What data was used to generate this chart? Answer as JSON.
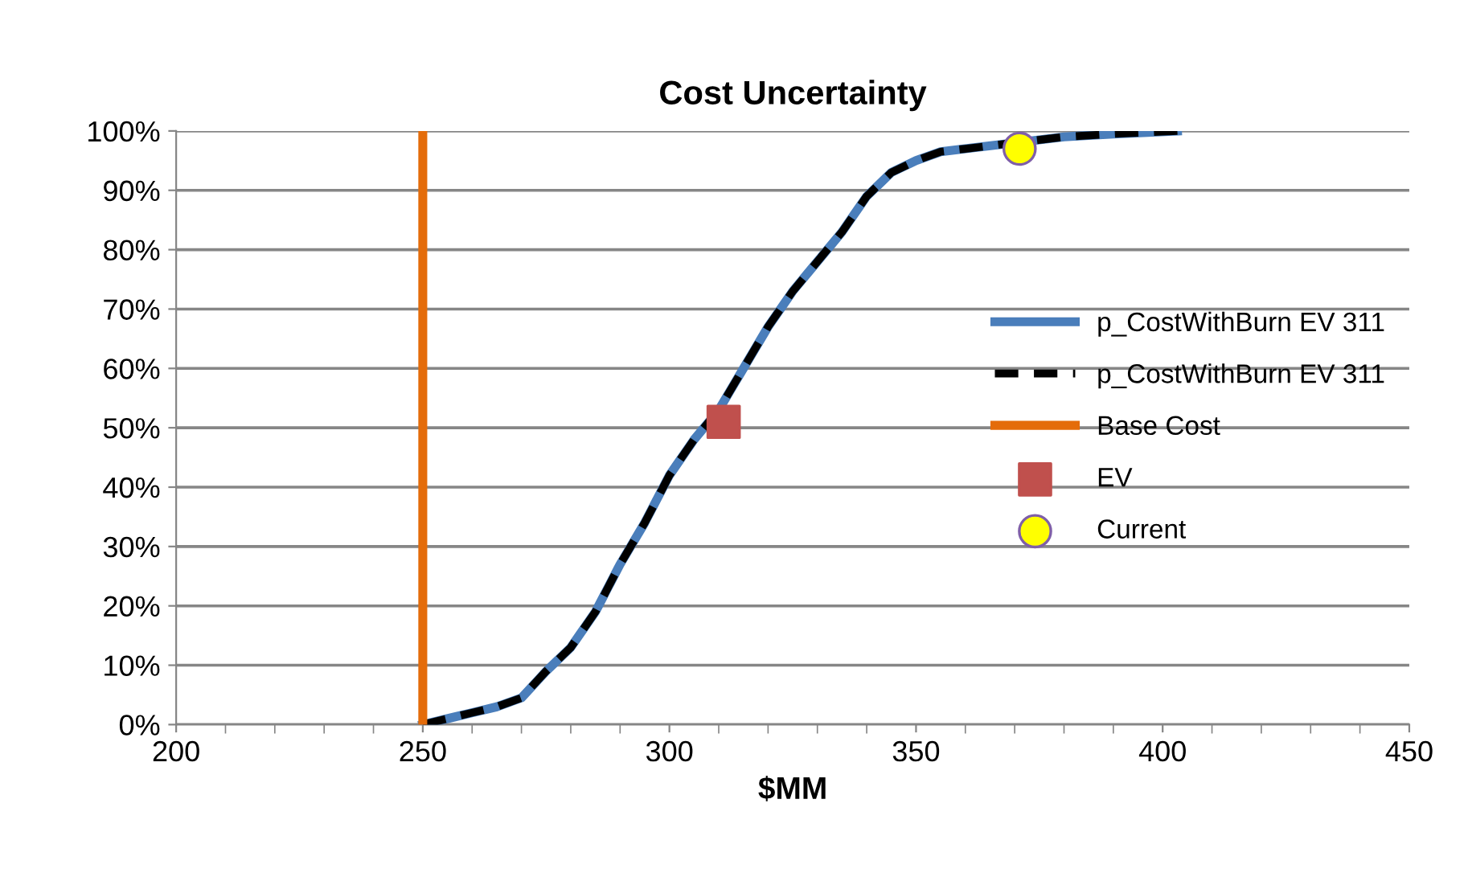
{
  "chart_data": {
    "type": "line",
    "title": "Cost Uncertainty",
    "xlabel": "$MM",
    "xlim": [
      200,
      450
    ],
    "xticks": [
      200,
      250,
      300,
      350,
      400,
      450
    ],
    "ylim": [
      0,
      100
    ],
    "yticks": [
      {
        "value": 0,
        "label": "0%"
      },
      {
        "value": 10,
        "label": "10%"
      },
      {
        "value": 20,
        "label": "20%"
      },
      {
        "value": 30,
        "label": "30%"
      },
      {
        "value": 40,
        "label": "40%"
      },
      {
        "value": 50,
        "label": "50%"
      },
      {
        "value": 60,
        "label": "60%"
      },
      {
        "value": 70,
        "label": "70%"
      },
      {
        "value": 80,
        "label": "80%"
      },
      {
        "value": 90,
        "label": "90%"
      },
      {
        "value": 100,
        "label": "100%"
      }
    ],
    "grid": "y",
    "legend": "right",
    "series": [
      {
        "name": "p_CostWithBurn EV 311",
        "color": "#4a7ebb",
        "line_style": "solid",
        "x": [
          250,
          255,
          260,
          265,
          270,
          275,
          280,
          285,
          290,
          295,
          300,
          305,
          310,
          315,
          320,
          325,
          330,
          335,
          340,
          345,
          350,
          355,
          360,
          380,
          390,
          403
        ],
        "values": [
          0,
          1,
          2,
          3,
          4.5,
          9,
          13,
          19,
          27,
          34,
          42,
          48,
          53,
          60,
          67,
          73,
          78,
          83,
          89,
          93,
          95,
          96.5,
          97,
          99,
          99.5,
          100
        ]
      },
      {
        "name": "p_CostWithBurn EV 311",
        "color": "#000000",
        "line_style": "dashed",
        "x": [
          250,
          255,
          260,
          265,
          270,
          275,
          280,
          285,
          290,
          295,
          300,
          305,
          310,
          315,
          320,
          325,
          330,
          335,
          340,
          345,
          350,
          355,
          360,
          380,
          390,
          403
        ],
        "values": [
          0,
          1,
          2,
          3,
          4.5,
          9,
          13,
          19,
          27,
          34,
          42,
          48,
          53,
          60,
          67,
          73,
          78,
          83,
          89,
          93,
          95,
          96.5,
          97,
          99,
          99.5,
          100
        ]
      },
      {
        "name": "Base Cost",
        "color": "#e46c0a",
        "line_style": "solid",
        "x": [
          250,
          250
        ],
        "values": [
          0,
          100
        ]
      },
      {
        "name": "EV",
        "type": "scatter",
        "marker": "square",
        "color": "#c0504d",
        "x": [
          311
        ],
        "values": [
          51
        ]
      },
      {
        "name": "Current",
        "type": "scatter",
        "marker": "circle",
        "color": "#ffff00",
        "x": [
          371
        ],
        "values": [
          97
        ]
      }
    ]
  }
}
